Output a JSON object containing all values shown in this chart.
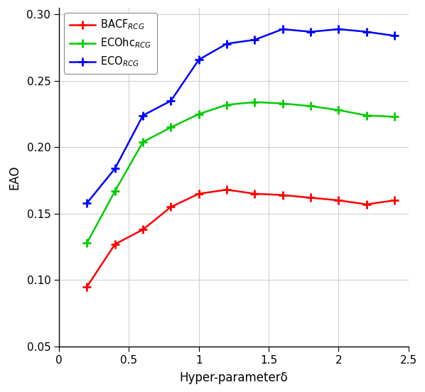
{
  "x": [
    0.2,
    0.4,
    0.6,
    0.8,
    1.0,
    1.2,
    1.4,
    1.6,
    1.8,
    2.0,
    2.2,
    2.4
  ],
  "BACF_RCG": [
    0.095,
    0.127,
    0.138,
    0.155,
    0.165,
    0.168,
    0.165,
    0.164,
    0.162,
    0.16,
    0.157,
    0.16
  ],
  "ECOhc_RCG": [
    0.128,
    0.167,
    0.204,
    0.215,
    0.225,
    0.232,
    0.234,
    0.233,
    0.231,
    0.228,
    0.224,
    0.223
  ],
  "ECO_RCG": [
    0.158,
    0.184,
    0.224,
    0.235,
    0.266,
    0.278,
    0.281,
    0.289,
    0.287,
    0.289,
    0.287,
    0.284
  ],
  "colors": {
    "BACF_RCG": "#ff0000",
    "ECOhc_RCG": "#00cc00",
    "ECO_RCG": "#0000ff"
  },
  "xlabel": "Hyper-parameterδ",
  "ylabel": "EAO",
  "xlim": [
    0.1,
    2.5
  ],
  "ylim": [
    0.05,
    0.305
  ],
  "xticks": [
    0.0,
    0.5,
    1.0,
    1.5,
    2.0,
    2.5
  ],
  "yticks": [
    0.05,
    0.1,
    0.15,
    0.2,
    0.25,
    0.3
  ],
  "figsize": [
    5.98,
    5.52
  ],
  "dpi": 100,
  "grid_color": "#d0d0d0",
  "bg_color": "#ffffff",
  "legend_labels": [
    "BACF$_{RCG}$",
    "ECOhc$_{RCG}$",
    "ECO$_{RCG}$"
  ]
}
